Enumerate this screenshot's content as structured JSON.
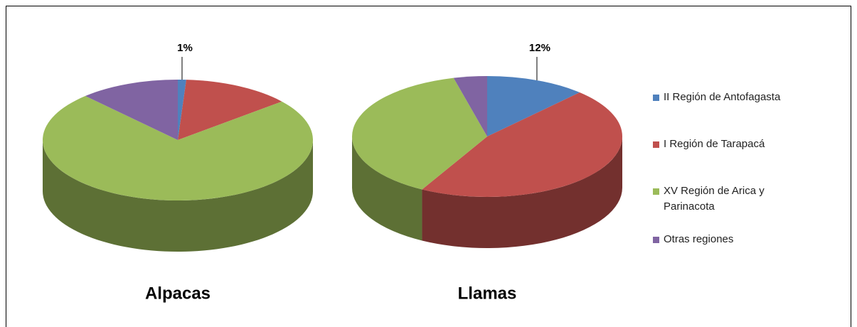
{
  "chart_data": [
    {
      "type": "pie",
      "title": "Alpacas",
      "categories": [
        "II Región de Antofagasta",
        "I Región de Tarapacá",
        "XV Región de Arica y Parinacota",
        "Otras regiones"
      ],
      "values": [
        1,
        13,
        74,
        12
      ],
      "value_labels": [
        "1%",
        null,
        null,
        null
      ],
      "colors": [
        "#4f81bd",
        "#c0504d",
        "#9bbb59",
        "#8064a2"
      ],
      "legend": "right"
    },
    {
      "type": "pie",
      "title": "Llamas",
      "categories": [
        "II Región de Antofagasta",
        "I Región de Tarapacá",
        "XV Región de Arica y Parinacota",
        "Otras regiones"
      ],
      "values": [
        12,
        46,
        38,
        4
      ],
      "value_labels": [
        "12%",
        null,
        null,
        null
      ],
      "colors": [
        "#4f81bd",
        "#c0504d",
        "#9bbb59",
        "#8064a2"
      ],
      "legend": "right"
    }
  ]
}
